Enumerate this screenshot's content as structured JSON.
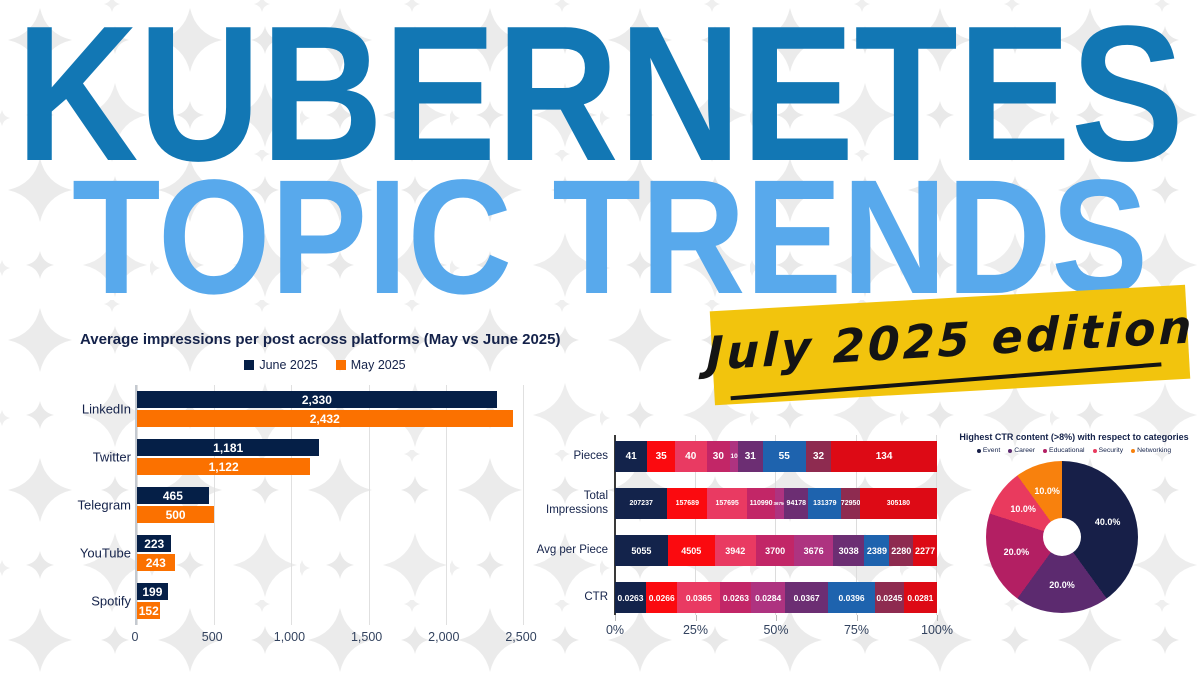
{
  "header": {
    "title_line1": "KUBERNETES",
    "title_line2": "TOPIC TRENDS",
    "badge": "July 2025 edition",
    "colors": {
      "line1": "#1277B4",
      "line2": "#58A9EC",
      "badge_bg": "#F2C40D"
    }
  },
  "chart_data": [
    {
      "type": "bar",
      "orientation": "horizontal",
      "title": "Average impressions per post across platforms (May vs June 2025)",
      "categories": [
        "LinkedIn",
        "Twitter",
        "Telegram",
        "YouTube",
        "Spotify"
      ],
      "series": [
        {
          "name": "June 2025",
          "color": "#051F47",
          "values": [
            2330,
            1181,
            465,
            223,
            199
          ],
          "labels": [
            "2,330",
            "1,181",
            "465",
            "223",
            "199"
          ]
        },
        {
          "name": "May 2025",
          "color": "#FB7100",
          "values": [
            2432,
            1122,
            500,
            243,
            152
          ],
          "labels": [
            "2,432",
            "1,122",
            "500",
            "243",
            "152"
          ]
        }
      ],
      "xlim": [
        0,
        2500
      ],
      "xticks": [
        {
          "value": 0,
          "label": "0"
        },
        {
          "value": 500,
          "label": "500"
        },
        {
          "value": 1000,
          "label": "1,000"
        },
        {
          "value": 1500,
          "label": "1,500"
        },
        {
          "value": 2000,
          "label": "2,000"
        },
        {
          "value": 2500,
          "label": "2,500"
        }
      ],
      "grid": true,
      "legend_position": "top"
    },
    {
      "type": "stacked-bar-100",
      "segment_colors": [
        "#13234B",
        "#FB0A0F",
        "#E93A62",
        "#C22667",
        "#AE3380",
        "#6C2E73",
        "#1E63AE",
        "#8E2B50",
        "#DD0A15"
      ],
      "rows": [
        {
          "label": "Pieces",
          "values": [
            41,
            35,
            40,
            30,
            10,
            31,
            55,
            32,
            134
          ],
          "labels": [
            "41",
            "35",
            "40",
            "30",
            "10",
            "31",
            "55",
            "32",
            "134"
          ]
        },
        {
          "label": "Total Impressions",
          "values": [
            207237,
            157689,
            157695,
            110990,
            36756,
            94178,
            131379,
            72950,
            305180
          ],
          "labels": [
            "207237",
            "157689",
            "157695",
            "110990",
            "36756",
            "94178",
            "131379",
            "72950",
            "305180"
          ]
        },
        {
          "label": "Avg per Piece",
          "values": [
            5055,
            4505,
            3942,
            3700,
            3676,
            3038,
            2389,
            2280,
            2277
          ],
          "labels": [
            "5055",
            "4505",
            "3942",
            "3700",
            "3676",
            "3038",
            "2389",
            "2280",
            "2277"
          ]
        },
        {
          "label": "CTR",
          "values": [
            0.0263,
            0.0266,
            0.0365,
            0.0263,
            0.0284,
            0.0367,
            0.0396,
            0.0245,
            0.0281
          ],
          "labels": [
            "0.0263",
            "0.0266",
            "0.0365",
            "0.0263",
            "0.0284",
            "0.0367",
            "0.0396",
            "0.0245",
            "0.0281"
          ]
        }
      ],
      "xticks": [
        {
          "pct": 0,
          "label": "0%"
        },
        {
          "pct": 25,
          "label": "25%"
        },
        {
          "pct": 50,
          "label": "50%"
        },
        {
          "pct": 75,
          "label": "75%"
        },
        {
          "pct": 100,
          "label": "100%"
        }
      ],
      "grid": true
    },
    {
      "type": "pie",
      "donut": true,
      "title": "Highest CTR content (>8%) with respect to categories",
      "labels": [
        "Event",
        "Career",
        "Educational",
        "Security",
        "Networking"
      ],
      "values": [
        40,
        20,
        20,
        10,
        10
      ],
      "display_labels": [
        "40.0%",
        "20.0%",
        "20.0%",
        "10.0%",
        "10.0%"
      ],
      "colors": [
        "#171F48",
        "#5C2A6F",
        "#B31F63",
        "#E93A5E",
        "#F8810D"
      ],
      "legend_position": "top"
    }
  ]
}
